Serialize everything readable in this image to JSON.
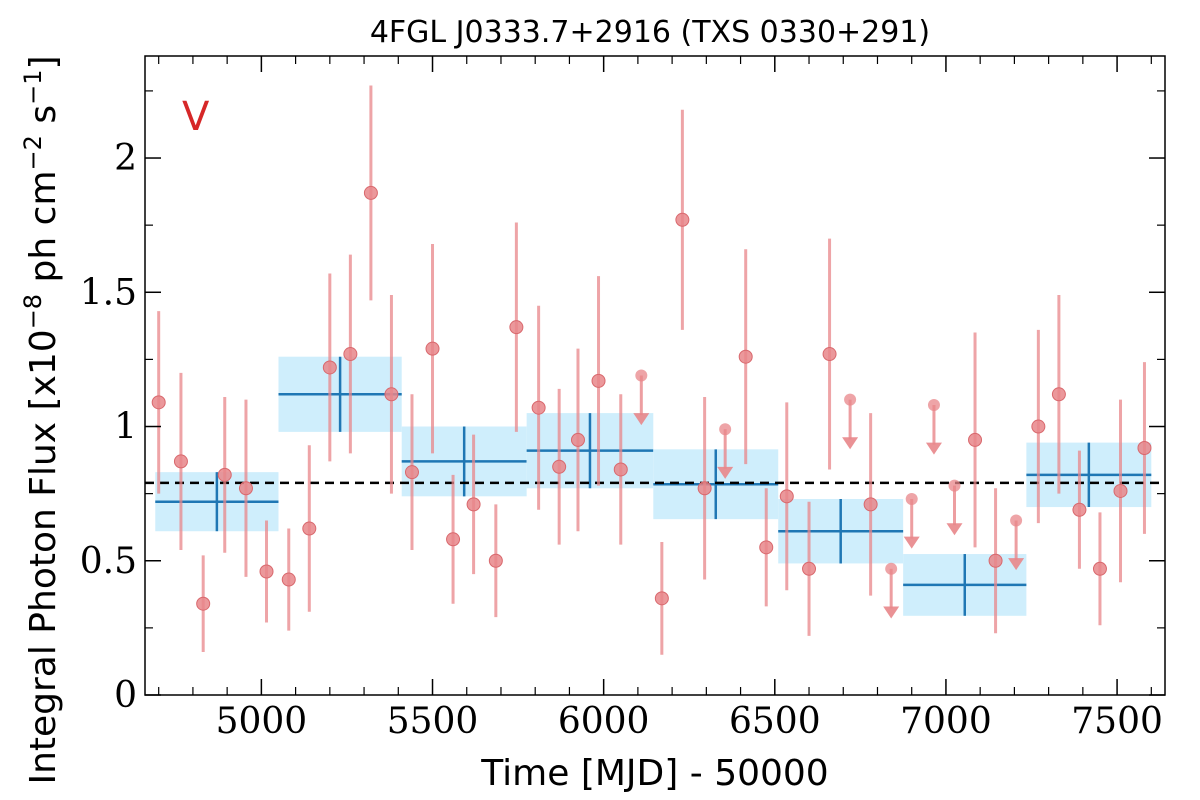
{
  "chart_data": {
    "type": "scatter",
    "title": "4FGL J0333.7+2916 (TXS 0330+291)",
    "panel_label": "V",
    "xlabel": "Time [MJD] - 50000",
    "ylabel_main": "Integral Photon Flux [x10",
    "ylabel_exp1": "−8",
    "ylabel_mid": " ph cm",
    "ylabel_exp2": "−2",
    "ylabel_end": " s",
    "ylabel_exp3": "−1",
    "ylabel_close": "]",
    "xlim": [
      4660,
      7640
    ],
    "ylim": [
      0,
      2.38
    ],
    "xticks": [
      5000,
      5500,
      6000,
      6500,
      7000,
      7500
    ],
    "xtick_labels": [
      "5000",
      "5500",
      "6000",
      "6500",
      "7000",
      "7500"
    ],
    "yticks": [
      0,
      0.5,
      1,
      1.5,
      2
    ],
    "ytick_labels": [
      "0",
      "0.5",
      "1",
      "1.5",
      "2"
    ],
    "mean_flux": 0.79,
    "colors": {
      "points": "#e8868a",
      "blocks_fill": "#cfeefc",
      "blocks_line": "#1f77b4",
      "mean_line": "#000000",
      "panel_label": "#d62728"
    },
    "points": [
      {
        "x": 4700,
        "y": 1.09,
        "err": 0.34
      },
      {
        "x": 4765,
        "y": 0.87,
        "err": 0.33
      },
      {
        "x": 4830,
        "y": 0.34,
        "err": 0.18
      },
      {
        "x": 4893,
        "y": 0.82,
        "err": 0.29
      },
      {
        "x": 4955,
        "y": 0.77,
        "err": 0.33
      },
      {
        "x": 5015,
        "y": 0.46,
        "err": 0.19
      },
      {
        "x": 5080,
        "y": 0.43,
        "err": 0.19
      },
      {
        "x": 5140,
        "y": 0.62,
        "err": 0.31
      },
      {
        "x": 5200,
        "y": 1.22,
        "err": 0.35
      },
      {
        "x": 5260,
        "y": 1.27,
        "err": 0.37
      },
      {
        "x": 5320,
        "y": 1.87,
        "err": 0.4
      },
      {
        "x": 5380,
        "y": 1.12,
        "err": 0.37
      },
      {
        "x": 5440,
        "y": 0.83,
        "err": 0.29
      },
      {
        "x": 5500,
        "y": 1.29,
        "err": 0.39
      },
      {
        "x": 5560,
        "y": 0.58,
        "err": 0.24
      },
      {
        "x": 5620,
        "y": 0.71,
        "err": 0.26
      },
      {
        "x": 5685,
        "y": 0.5,
        "err": 0.21
      },
      {
        "x": 5745,
        "y": 1.37,
        "err": 0.39
      },
      {
        "x": 5810,
        "y": 1.07,
        "err": 0.38
      },
      {
        "x": 5870,
        "y": 0.85,
        "err": 0.29
      },
      {
        "x": 5925,
        "y": 0.95,
        "err": 0.34
      },
      {
        "x": 5985,
        "y": 1.17,
        "err": 0.39
      },
      {
        "x": 6050,
        "y": 0.84,
        "err": 0.28
      },
      {
        "x": 6170,
        "y": 0.36,
        "err": 0.21
      },
      {
        "x": 6230,
        "y": 1.77,
        "err": 0.41
      },
      {
        "x": 6295,
        "y": 0.77,
        "err": 0.34
      },
      {
        "x": 6415,
        "y": 1.26,
        "err": 0.4
      },
      {
        "x": 6475,
        "y": 0.55,
        "err": 0.22
      },
      {
        "x": 6535,
        "y": 0.74,
        "err": 0.35
      },
      {
        "x": 6600,
        "y": 0.47,
        "err": 0.25
      },
      {
        "x": 6660,
        "y": 1.27,
        "err": 0.43
      },
      {
        "x": 6780,
        "y": 0.71,
        "err": 0.34
      },
      {
        "x": 7085,
        "y": 0.95,
        "err": 0.4
      },
      {
        "x": 7145,
        "y": 0.5,
        "err": 0.27
      },
      {
        "x": 7270,
        "y": 1.0,
        "err": 0.36
      },
      {
        "x": 7330,
        "y": 1.12,
        "err": 0.37
      },
      {
        "x": 7390,
        "y": 0.69,
        "err": 0.22
      },
      {
        "x": 7450,
        "y": 0.47,
        "err": 0.21
      },
      {
        "x": 7510,
        "y": 0.76,
        "err": 0.34
      },
      {
        "x": 7580,
        "y": 0.92,
        "err": 0.32
      }
    ],
    "upper_limits": [
      {
        "x": 6110,
        "y": 1.19,
        "arrow_to": 1.02
      },
      {
        "x": 6355,
        "y": 0.99,
        "arrow_to": 0.82
      },
      {
        "x": 6720,
        "y": 1.1,
        "arrow_to": 0.93
      },
      {
        "x": 6840,
        "y": 0.47,
        "arrow_to": 0.3
      },
      {
        "x": 6900,
        "y": 0.73,
        "arrow_to": 0.56
      },
      {
        "x": 6965,
        "y": 1.08,
        "arrow_to": 0.91
      },
      {
        "x": 7025,
        "y": 0.78,
        "arrow_to": 0.61
      },
      {
        "x": 7205,
        "y": 0.65,
        "arrow_to": 0.48
      }
    ],
    "blocks": [
      {
        "x0": 4690,
        "x1": 5050,
        "value": 0.72,
        "err": 0.11
      },
      {
        "x0": 5050,
        "x1": 5410,
        "value": 1.12,
        "err": 0.14
      },
      {
        "x0": 5410,
        "x1": 5775,
        "value": 0.87,
        "err": 0.13
      },
      {
        "x0": 5775,
        "x1": 6145,
        "value": 0.91,
        "err": 0.14
      },
      {
        "x0": 6145,
        "x1": 6510,
        "value": 0.785,
        "err": 0.13
      },
      {
        "x0": 6510,
        "x1": 6875,
        "value": 0.61,
        "err": 0.12
      },
      {
        "x0": 6875,
        "x1": 7235,
        "value": 0.41,
        "err": 0.115
      },
      {
        "x0": 7235,
        "x1": 7600,
        "value": 0.82,
        "err": 0.12
      }
    ]
  }
}
